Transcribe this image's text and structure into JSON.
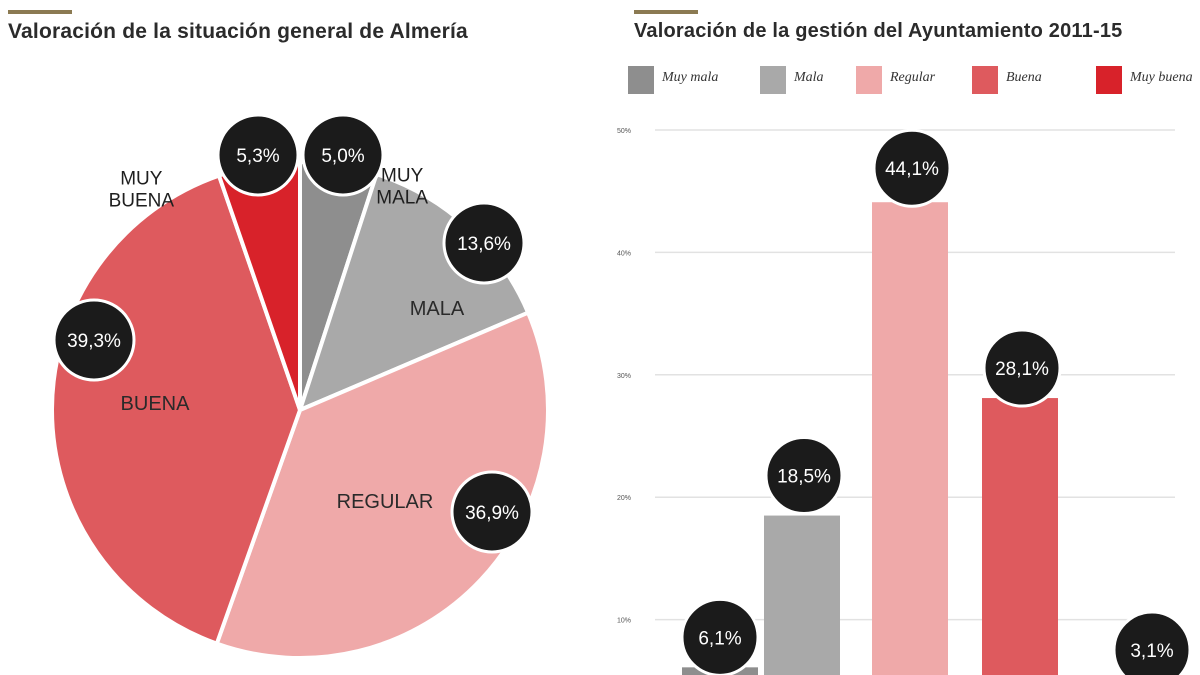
{
  "colors": {
    "accent": "#8b7a52",
    "muy_mala": "#8e8e8e",
    "mala": "#a9a9a9",
    "regular": "#efa9a9",
    "buena": "#de5a5e",
    "muy_buena": "#d8222a",
    "badge": "#1b1b1b"
  },
  "chart_data": [
    {
      "type": "pie",
      "title": "Valoración de la situación general de Almería",
      "slices": [
        {
          "category": "MUY MALA",
          "value": 5.0,
          "display": "5,0%",
          "color": "#8e8e8e"
        },
        {
          "category": "MALA",
          "value": 13.6,
          "display": "13,6%",
          "color": "#a9a9a9"
        },
        {
          "category": "REGULAR",
          "value": 36.9,
          "display": "36,9%",
          "color": "#efa9a9"
        },
        {
          "category": "BUENA",
          "value": 39.3,
          "display": "39,3%",
          "color": "#de5a5e"
        },
        {
          "category": "MUY BUENA",
          "value": 5.3,
          "display": "5,3%",
          "color": "#d8222a"
        }
      ]
    },
    {
      "type": "bar",
      "title": "Valoración de la gestión del Ayuntamiento 2011-15",
      "legend": [
        "Muy mala",
        "Mala",
        "Regular",
        "Buena",
        "Muy buena"
      ],
      "legend_position": "top",
      "categories": [
        "Muy mala",
        "Mala",
        "Regular",
        "Buena",
        "Muy buena"
      ],
      "values": [
        6.1,
        18.5,
        44.1,
        28.1,
        3.1
      ],
      "value_labels": [
        "6,1%",
        "18,5%",
        "44,1%",
        "28,1%",
        "3,1%"
      ],
      "colors": [
        "#8e8e8e",
        "#a9a9a9",
        "#efa9a9",
        "#de5a5e",
        "#d8222a"
      ],
      "yticks": [
        10,
        20,
        30,
        40,
        50
      ],
      "ytick_labels": [
        "10%",
        "20%",
        "30%",
        "40%",
        "50%"
      ],
      "ylim": [
        0,
        50
      ],
      "grid": true
    }
  ]
}
